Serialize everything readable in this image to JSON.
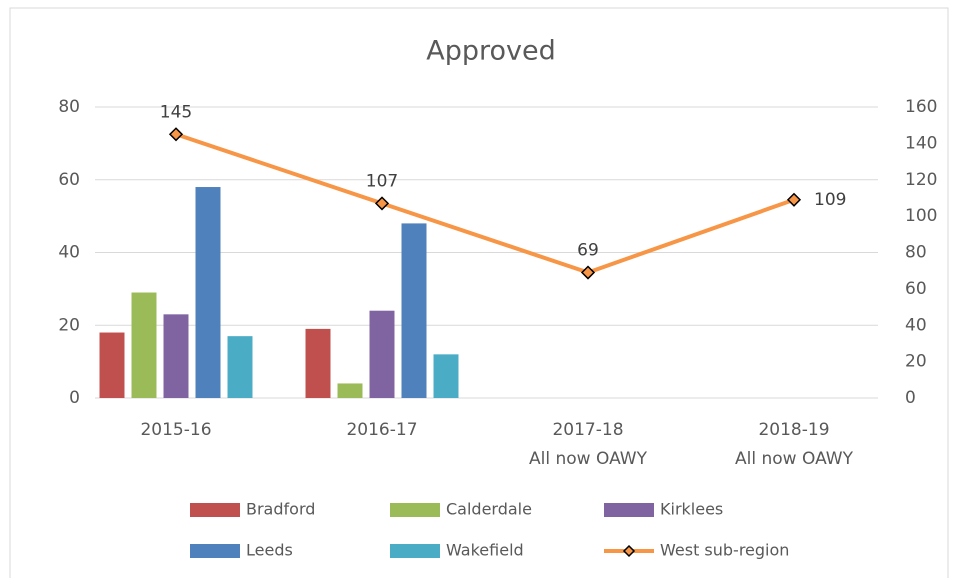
{
  "chart_data": {
    "type": "bar",
    "title": "Approved",
    "categories": [
      [
        "2015-16"
      ],
      [
        "2016-17"
      ],
      [
        "2017-18",
        "All now OAWY"
      ],
      [
        "2018-19",
        "All now OAWY"
      ]
    ],
    "series": [
      {
        "name": "Bradford",
        "color": "#c0504d",
        "values": [
          18,
          19,
          null,
          null
        ]
      },
      {
        "name": "Calderdale",
        "color": "#9bbb59",
        "values": [
          29,
          4,
          null,
          null
        ]
      },
      {
        "name": "Kirklees",
        "color": "#8064a2",
        "values": [
          23,
          24,
          null,
          null
        ]
      },
      {
        "name": "Leeds",
        "color": "#4f81bd",
        "values": [
          58,
          48,
          null,
          null
        ]
      },
      {
        "name": "Wakefield",
        "color": "#4bacc6",
        "values": [
          17,
          12,
          null,
          null
        ]
      },
      {
        "name": "West sub-region",
        "color": "#f79646",
        "type": "line",
        "axis": "y2",
        "values": [
          145,
          107,
          69,
          109
        ]
      }
    ],
    "ylim": [
      0,
      80
    ],
    "yticks": [
      0,
      20,
      40,
      60,
      80
    ],
    "y2lim": [
      0,
      160
    ],
    "y2ticks": [
      0,
      20,
      40,
      60,
      80,
      100,
      120,
      140,
      160
    ],
    "grid": true,
    "legend": "bottom"
  }
}
